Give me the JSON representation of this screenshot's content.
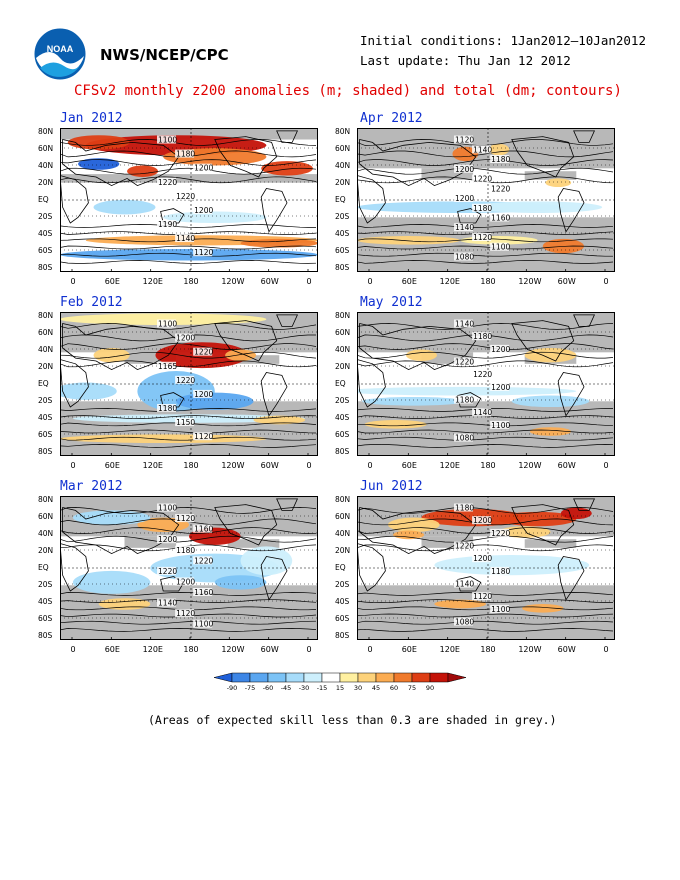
{
  "header": {
    "agency": "NWS/NCEP/CPC",
    "initial_conditions": "Initial conditions: 1Jan2012–10Jan2012",
    "last_update": "Last update: Thu Jan 12 2012",
    "title": "CFSv2 monthly z200 anomalies (m; shaded) and total (dm; contours)"
  },
  "logo": {
    "text": "NOAA",
    "icon": "noaa-logo"
  },
  "axes": {
    "lat_labels": [
      "80N",
      "60N",
      "40N",
      "20N",
      "EQ",
      "20S",
      "40S",
      "60S",
      "80S"
    ],
    "lon_labels": [
      "0",
      "60E",
      "120E",
      "180",
      "120W",
      "60W",
      "0"
    ]
  },
  "panels": [
    {
      "month": "Jan 2012",
      "labels": [
        "1100",
        "1180",
        "1200",
        "1220",
        "1220",
        "1200",
        "1190",
        "1140",
        "1120"
      ]
    },
    {
      "month": "Apr 2012",
      "labels": [
        "1120",
        "1140",
        "1180",
        "1200",
        "1220",
        "1220",
        "1200",
        "1180",
        "1160",
        "1140",
        "1120",
        "1100",
        "1080"
      ]
    },
    {
      "month": "Feb 2012",
      "labels": [
        "1100",
        "1200",
        "1220",
        "1165",
        "1220",
        "1200",
        "1180",
        "1150",
        "1120"
      ]
    },
    {
      "month": "May 2012",
      "labels": [
        "1140",
        "1180",
        "1200",
        "1220",
        "1220",
        "1200",
        "1180",
        "1140",
        "1100",
        "1080"
      ]
    },
    {
      "month": "Mar 2012",
      "labels": [
        "1100",
        "1120",
        "1160",
        "1200",
        "1180",
        "1220",
        "1220",
        "1200",
        "1160",
        "1140",
        "1120",
        "1100"
      ]
    },
    {
      "month": "Jun 2012",
      "labels": [
        "1180",
        "1200",
        "1220",
        "1220",
        "1200",
        "1180",
        "1140",
        "1120",
        "1100",
        "1080"
      ]
    }
  ],
  "colorbar": {
    "ticks": [
      "-90",
      "-75",
      "-60",
      "-45",
      "-30",
      "-15",
      "15",
      "30",
      "45",
      "60",
      "75",
      "90"
    ],
    "colors": [
      "#1f5fd8",
      "#3d86e6",
      "#5aa6f0",
      "#7cc3f6",
      "#a7dcfa",
      "#cdeffc",
      "#ffffff",
      "#fff0a0",
      "#fdd27a",
      "#fbac52",
      "#f07a2c",
      "#de3e14",
      "#c41208",
      "#a00a0a"
    ]
  },
  "note": "(Areas of expected skill less than 0.3 are shaded in grey.)"
}
